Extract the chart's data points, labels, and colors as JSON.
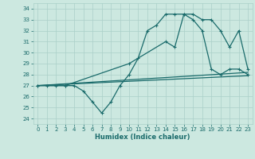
{
  "xlabel": "Humidex (Indice chaleur)",
  "bg_color": "#cce8e0",
  "grid_color": "#aacfc8",
  "line_color": "#1a6b6b",
  "xlim": [
    -0.5,
    23.5
  ],
  "ylim": [
    23.5,
    34.5
  ],
  "xticks": [
    0,
    1,
    2,
    3,
    4,
    5,
    6,
    7,
    8,
    9,
    10,
    11,
    12,
    13,
    14,
    15,
    16,
    17,
    18,
    19,
    20,
    21,
    22,
    23
  ],
  "yticks": [
    24,
    25,
    26,
    27,
    28,
    29,
    30,
    31,
    32,
    33,
    34
  ],
  "series1_x": [
    0,
    1,
    2,
    3,
    4,
    5,
    6,
    7,
    8,
    9,
    10,
    11,
    12,
    13,
    14,
    15,
    16,
    17,
    18,
    19,
    20,
    21,
    22,
    23
  ],
  "series1_y": [
    27,
    27,
    27,
    27,
    27,
    26.5,
    25.5,
    24.5,
    25.5,
    27,
    28,
    29.5,
    32,
    32.5,
    33.5,
    33.5,
    33.5,
    33,
    32,
    28.5,
    28,
    28.5,
    28.5,
    28
  ],
  "series2_x": [
    0,
    3,
    10,
    14,
    15,
    16,
    17,
    18,
    19,
    20,
    21,
    22,
    23
  ],
  "series2_y": [
    27,
    27,
    29,
    31,
    30.5,
    33.5,
    33.5,
    33,
    33,
    32,
    30.5,
    32,
    28.5
  ],
  "series3_x": [
    0,
    23
  ],
  "series3_y": [
    27,
    28.2
  ],
  "series4_x": [
    0,
    23
  ],
  "series4_y": [
    27,
    27.9
  ]
}
